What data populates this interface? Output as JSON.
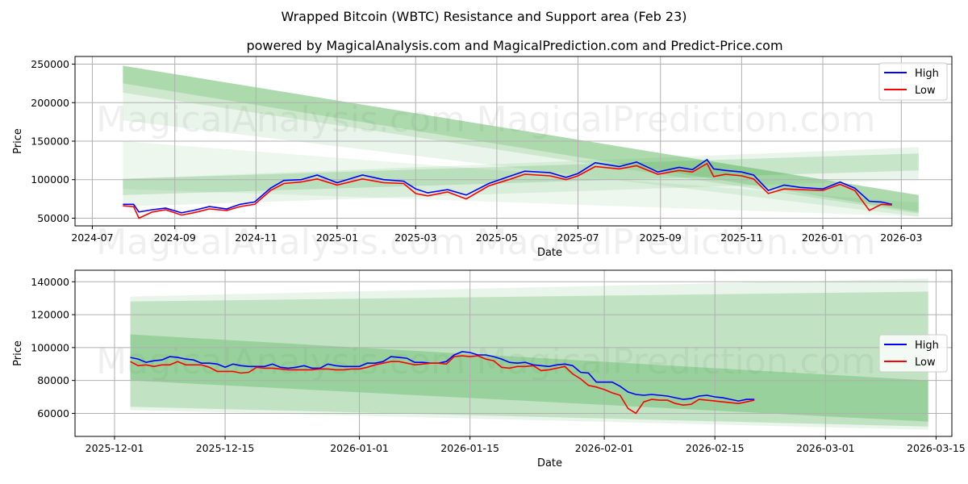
{
  "title": "Wrapped Bitcoin (WBTC) Resistance and Support area (Feb 23)",
  "subtitle": "powered by MagicalAnalysis.com and MagicalPrediction.com and Predict-Price.com",
  "watermarks": [
    "MagicalAnalysis.com",
    "MagicalPrediction.com"
  ],
  "colors": {
    "high": "#0000ff",
    "low": "#ff0000",
    "band": "#4caf50"
  },
  "chart_data": [
    {
      "type": "line",
      "xlabel": "Date",
      "ylabel": "Price",
      "ylim": [
        40000,
        260000
      ],
      "xlim": [
        "2024-06-18",
        "2026-04-08"
      ],
      "yticks": [
        50000,
        100000,
        150000,
        200000,
        250000
      ],
      "xticks": [
        "2024-07",
        "2024-09",
        "2024-11",
        "2025-01",
        "2025-03",
        "2025-05",
        "2025-07",
        "2025-09",
        "2025-11",
        "2026-01",
        "2026-03"
      ],
      "legend": {
        "position": "top-right",
        "entries": [
          "High",
          "Low"
        ]
      },
      "grid": true,
      "bands": [
        {
          "from": "2024-07-24",
          "to": "2026-03-14",
          "start": [
            177000,
            248000
          ],
          "end": [
            52000,
            80000
          ],
          "opacity": 0.12
        },
        {
          "from": "2024-07-24",
          "to": "2026-03-14",
          "start": [
            213000,
            248000
          ],
          "end": [
            56000,
            80000
          ],
          "opacity": 0.18
        },
        {
          "from": "2024-07-24",
          "to": "2026-03-14",
          "start": [
            225000,
            248000
          ],
          "end": [
            58000,
            80000
          ],
          "opacity": 0.25
        },
        {
          "from": "2024-07-24",
          "to": "2026-03-14",
          "start": [
            88000,
            150000
          ],
          "end": [
            52000,
            70000
          ],
          "opacity": 0.1
        },
        {
          "from": "2024-07-24",
          "to": "2026-03-14",
          "start": [
            65000,
            101000
          ],
          "end": [
            100000,
            142000
          ],
          "opacity": 0.12
        },
        {
          "from": "2024-07-24",
          "to": "2026-03-14",
          "start": [
            80000,
            101000
          ],
          "end": [
            112000,
            134000
          ],
          "opacity": 0.22
        }
      ],
      "dates": [
        "2024-07-24",
        "2024-08-01",
        "2024-08-05",
        "2024-08-15",
        "2024-08-25",
        "2024-09-06",
        "2024-09-15",
        "2024-09-27",
        "2024-10-10",
        "2024-10-20",
        "2024-10-31",
        "2024-11-12",
        "2024-11-22",
        "2024-12-05",
        "2024-12-17",
        "2025-01-01",
        "2025-01-20",
        "2025-02-05",
        "2025-02-20",
        "2025-03-01",
        "2025-03-10",
        "2025-03-25",
        "2025-04-08",
        "2025-04-25",
        "2025-05-10",
        "2025-05-22",
        "2025-06-10",
        "2025-06-22",
        "2025-07-01",
        "2025-07-14",
        "2025-08-01",
        "2025-08-14",
        "2025-08-30",
        "2025-09-15",
        "2025-09-25",
        "2025-10-06",
        "2025-10-11",
        "2025-10-20",
        "2025-11-01",
        "2025-11-10",
        "2025-11-21",
        "2025-12-03",
        "2025-12-15",
        "2026-01-01",
        "2026-01-14",
        "2026-01-25",
        "2026-02-05",
        "2026-02-14",
        "2026-02-22"
      ],
      "high": [
        68000,
        68000,
        58000,
        61000,
        63000,
        57000,
        60000,
        65000,
        62000,
        68000,
        71000,
        89000,
        99000,
        100000,
        106000,
        96000,
        106000,
        100000,
        98000,
        88000,
        83000,
        87000,
        80000,
        95000,
        104000,
        111000,
        109000,
        103000,
        108000,
        122000,
        117000,
        123000,
        110000,
        116000,
        113000,
        126000,
        114000,
        112000,
        110000,
        106000,
        86000,
        93000,
        90000,
        88000,
        97000,
        89000,
        72000,
        71000,
        68000
      ],
      "low": [
        66000,
        65000,
        50000,
        58000,
        61000,
        54000,
        57000,
        62000,
        60000,
        65000,
        68000,
        86000,
        95000,
        97000,
        101000,
        93000,
        101000,
        96000,
        95000,
        82000,
        79000,
        84000,
        75000,
        92000,
        100000,
        107000,
        105000,
        100000,
        105000,
        117000,
        114000,
        118000,
        107000,
        112000,
        110000,
        121000,
        104000,
        107000,
        105000,
        101000,
        82000,
        88000,
        87000,
        86000,
        94000,
        86000,
        60000,
        68000,
        67000
      ]
    },
    {
      "type": "line",
      "xlabel": "Date",
      "ylabel": "Price",
      "ylim": [
        46000,
        147000
      ],
      "xlim": [
        "2025-11-26",
        "2026-03-17"
      ],
      "yticks": [
        60000,
        80000,
        100000,
        120000,
        140000
      ],
      "xticks": [
        "2025-12-01",
        "2025-12-15",
        "2026-01-01",
        "2026-01-15",
        "2026-02-01",
        "2026-02-15",
        "2026-03-01",
        "2026-03-15"
      ],
      "legend": {
        "position": "center-right",
        "entries": [
          "High",
          "Low"
        ]
      },
      "grid": true,
      "bands": [
        {
          "from": "2025-12-03",
          "to": "2026-03-14",
          "start": [
            62000,
            131000
          ],
          "end": [
            50000,
            142000
          ],
          "opacity": 0.12
        },
        {
          "from": "2025-12-03",
          "to": "2026-03-14",
          "start": [
            64000,
            128000
          ],
          "end": [
            52000,
            134000
          ],
          "opacity": 0.25
        },
        {
          "from": "2025-12-03",
          "to": "2026-03-14",
          "start": [
            80000,
            108000
          ],
          "end": [
            55000,
            80000
          ],
          "opacity": 0.35
        }
      ],
      "start_date": "2025-12-03",
      "high": [
        94000,
        93000,
        91000,
        92000,
        92500,
        94500,
        94000,
        93000,
        92500,
        90500,
        90500,
        90000,
        88000,
        90000,
        89000,
        88500,
        88500,
        88500,
        90000,
        88000,
        87500,
        88000,
        89000,
        87500,
        87500,
        90000,
        89000,
        88500,
        88500,
        88500,
        90500,
        90500,
        91500,
        94500,
        94000,
        93500,
        91000,
        91000,
        90500,
        90500,
        91500,
        95500,
        97500,
        97000,
        95500,
        95500,
        94500,
        93000,
        91000,
        90500,
        91000,
        89500,
        89000,
        88500,
        89500,
        90000,
        89000,
        85000,
        84500,
        79000,
        79000,
        79000,
        76500,
        73000,
        71500,
        71000,
        71500,
        71000,
        70500,
        69500,
        68500,
        69000,
        70500,
        71000,
        70000,
        69500,
        68500,
        67500,
        68500,
        68500
      ],
      "low": [
        91500,
        89000,
        89500,
        88500,
        89500,
        89500,
        91500,
        89500,
        89500,
        89500,
        88000,
        85500,
        85500,
        85500,
        84500,
        85000,
        88000,
        87500,
        87500,
        87000,
        86500,
        86500,
        86500,
        86500,
        87000,
        87000,
        86500,
        86500,
        87000,
        87000,
        88000,
        89500,
        90500,
        91500,
        91500,
        90500,
        89500,
        90000,
        90500,
        90500,
        90000,
        94500,
        95000,
        94500,
        95000,
        93000,
        92000,
        88000,
        87500,
        88500,
        88500,
        89000,
        86000,
        86500,
        87500,
        88500,
        84000,
        81000,
        77000,
        76000,
        74500,
        72500,
        71000,
        63000,
        60000,
        67000,
        68500,
        68000,
        68000,
        66000,
        65000,
        65500,
        68500,
        68000,
        67500,
        67000,
        66500,
        66000,
        67000,
        68000
      ]
    }
  ]
}
